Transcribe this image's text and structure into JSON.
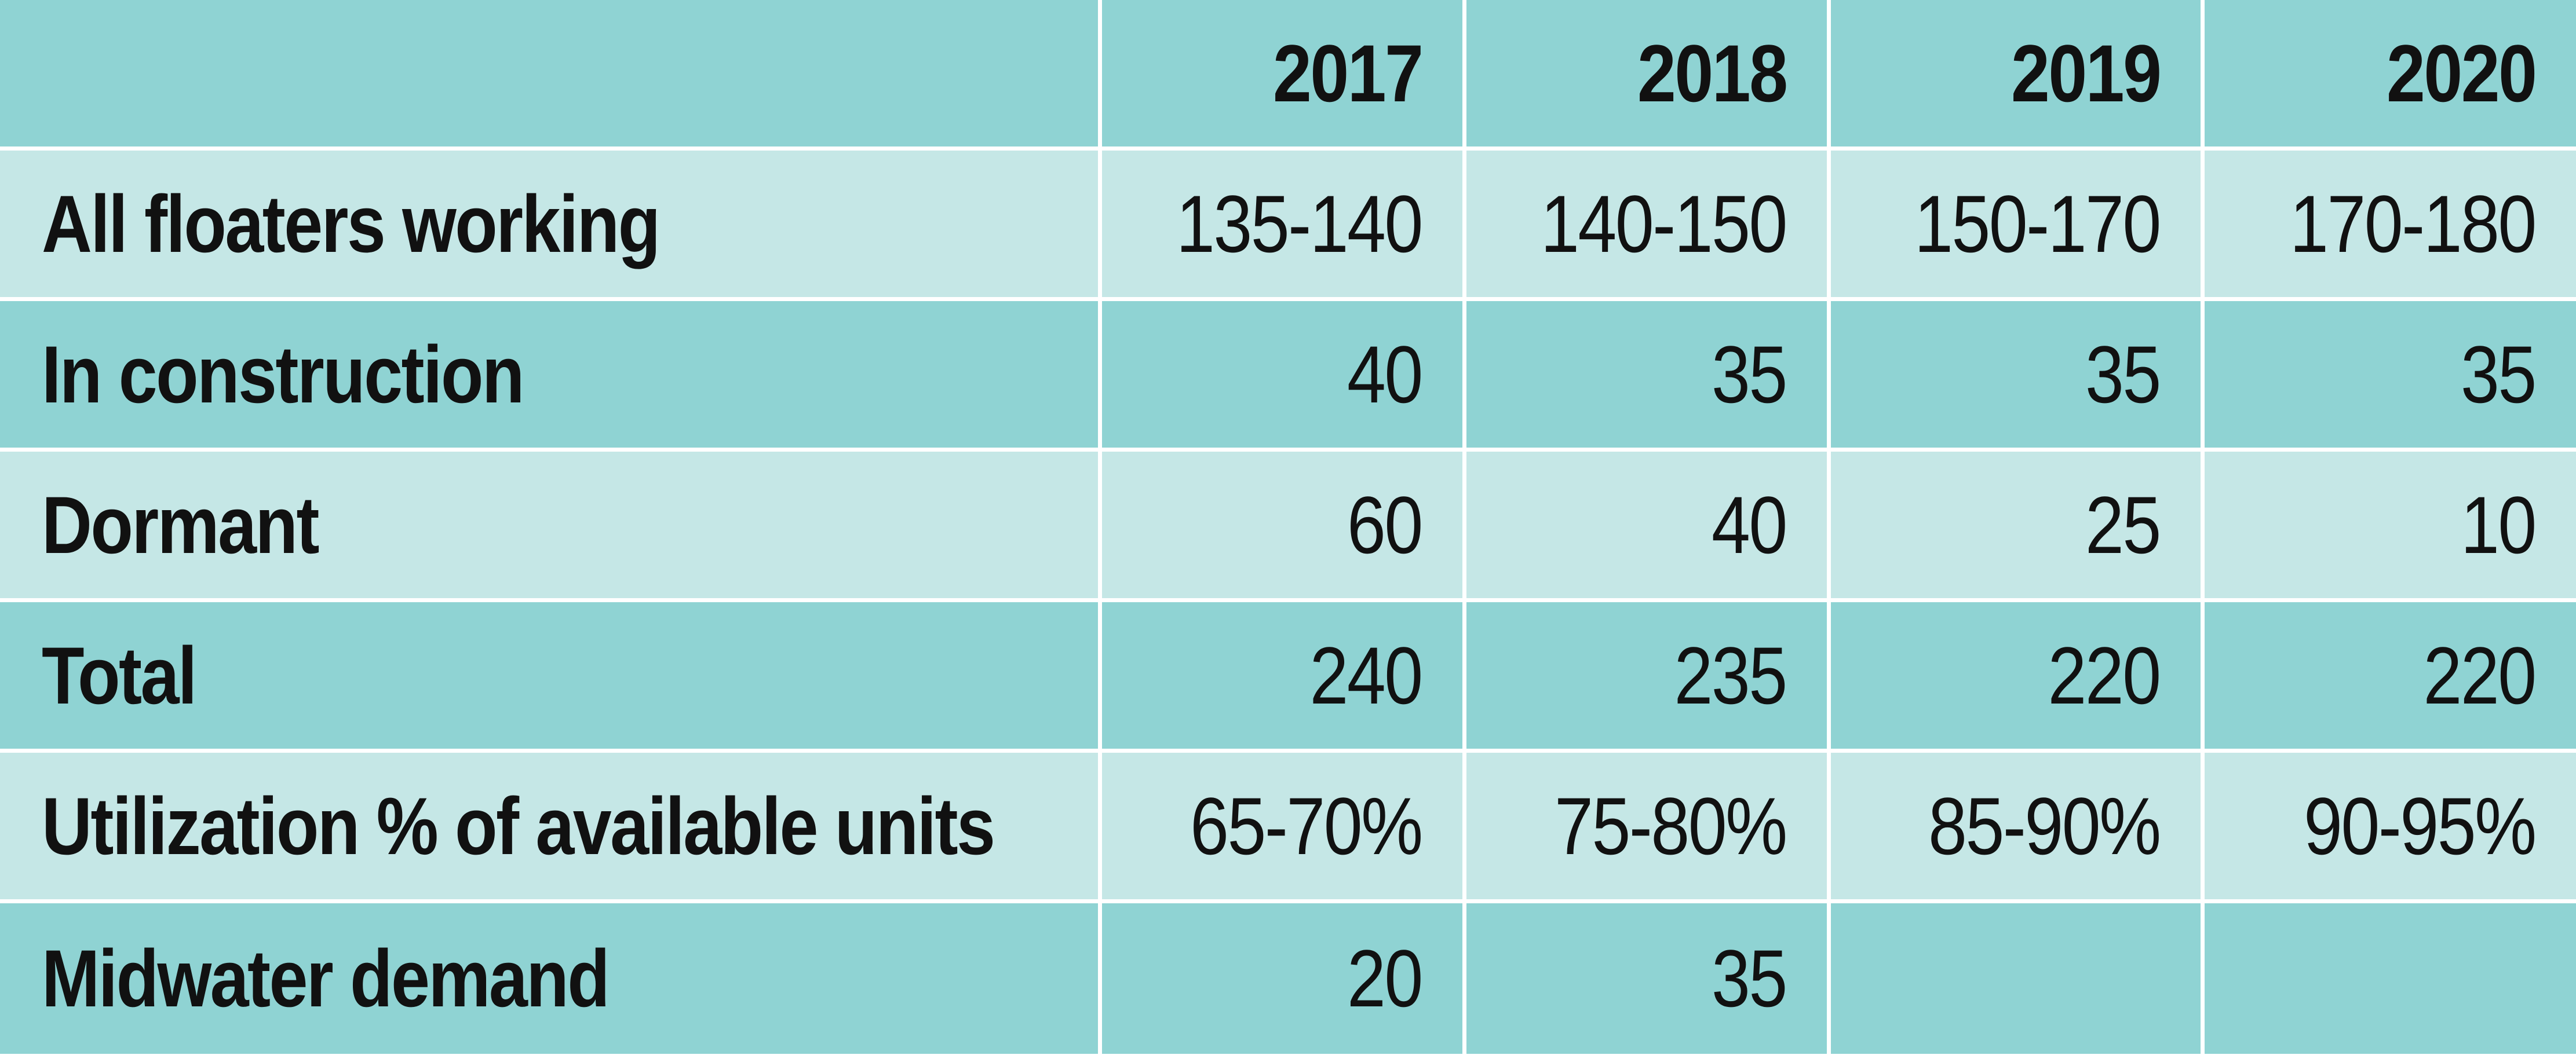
{
  "table": {
    "header": [
      "",
      "2017",
      "2018",
      "2019",
      "2020"
    ],
    "rows": [
      {
        "label": "All floaters working",
        "values": [
          "135-140",
          "140-150",
          "150-170",
          "170-180"
        ]
      },
      {
        "label": "In construction",
        "values": [
          "40",
          "35",
          "35",
          "35"
        ]
      },
      {
        "label": "Dormant",
        "values": [
          "60",
          "40",
          "25",
          "10"
        ]
      },
      {
        "label": "Total",
        "values": [
          "240",
          "235",
          "220",
          "220"
        ]
      },
      {
        "label": "Utilization % of available units",
        "values": [
          "65-70%",
          "75-80%",
          "85-90%",
          "90-95%"
        ]
      },
      {
        "label": "Midwater demand",
        "values": [
          "20",
          "35",
          "",
          ""
        ]
      }
    ]
  },
  "colors": {
    "dark_row": "#8fd3d3",
    "light_row": "#c5e7e6",
    "grid_line": "#ffffff",
    "text": "#111111"
  }
}
